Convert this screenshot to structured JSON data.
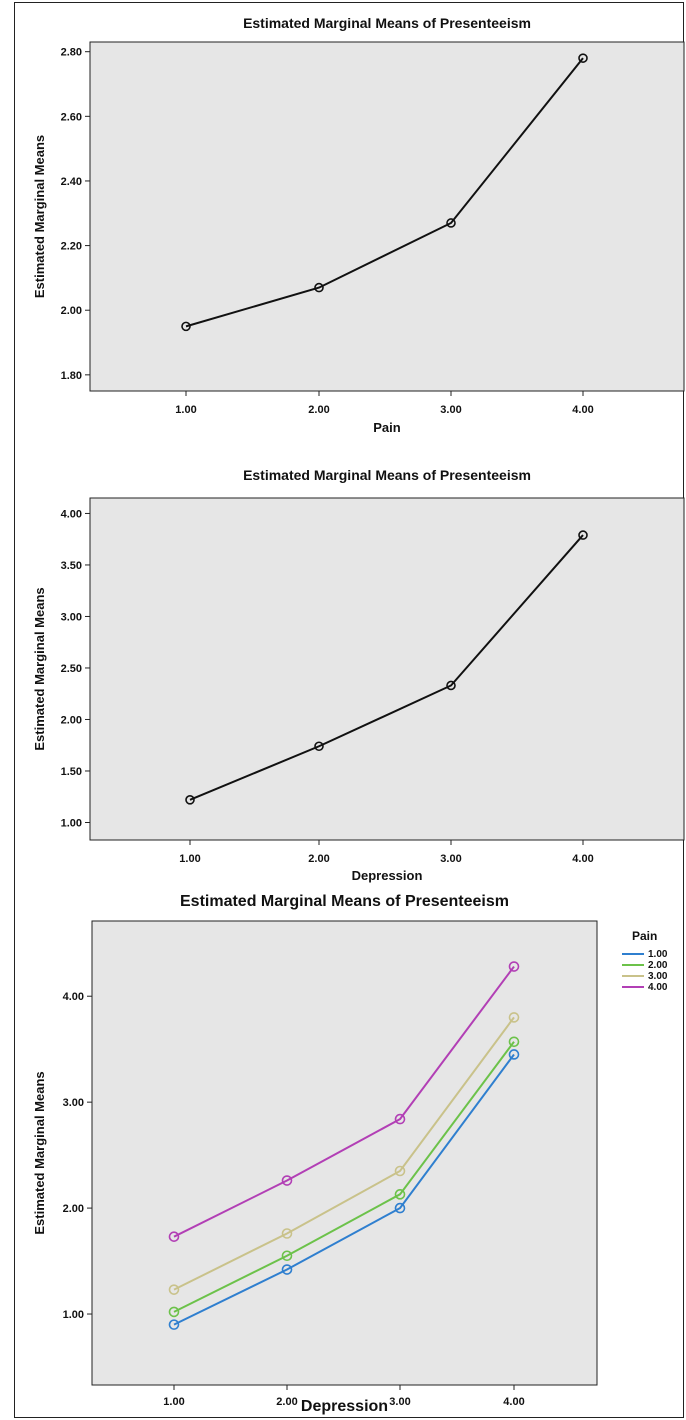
{
  "chart_data": [
    {
      "type": "line",
      "title": "Estimated Marginal Means of Presenteeism",
      "xlabel": "Pain",
      "ylabel": "Estimated Marginal Means",
      "x": [
        "1.00",
        "2.00",
        "3.00",
        "4.00"
      ],
      "y_ticks": [
        "1.80",
        "2.00",
        "2.20",
        "2.40",
        "2.60",
        "2.80"
      ],
      "ylim": [
        1.75,
        2.83
      ],
      "grid": false,
      "series": [
        {
          "values": [
            1.95,
            2.07,
            2.27,
            2.78
          ],
          "color": "#111111"
        }
      ]
    },
    {
      "type": "line",
      "title": "Estimated Marginal Means of Presenteeism",
      "xlabel": "Depression",
      "ylabel": "Estimated Marginal Means",
      "x": [
        "1.00",
        "2.00",
        "3.00",
        "4.00"
      ],
      "y_ticks": [
        "1.00",
        "1.50",
        "2.00",
        "2.50",
        "3.00",
        "3.50",
        "4.00"
      ],
      "ylim": [
        0.83,
        4.15
      ],
      "grid": false,
      "series": [
        {
          "values": [
            1.22,
            1.74,
            2.33,
            3.79
          ],
          "color": "#111111"
        }
      ]
    },
    {
      "type": "line",
      "title": "Estimated Marginal Means of Presenteeism",
      "xlabel": "Depression",
      "ylabel": "Estimated Marginal Means",
      "x": [
        "1.00",
        "2.00",
        "3.00",
        "4.00"
      ],
      "y_ticks": [
        "1.00",
        "2.00",
        "3.00",
        "4.00"
      ],
      "ylim": [
        0.33,
        4.71
      ],
      "grid": false,
      "legend": {
        "title": "Pain",
        "placement": "right"
      },
      "series": [
        {
          "name": "1.00",
          "values": [
            0.9,
            1.42,
            2.0,
            3.45
          ],
          "color": "#2f7fcf"
        },
        {
          "name": "2.00",
          "values": [
            1.02,
            1.55,
            2.13,
            3.57
          ],
          "color": "#6cc24a"
        },
        {
          "name": "3.00",
          "values": [
            1.23,
            1.76,
            2.35,
            3.8
          ],
          "color": "#c9c28a"
        },
        {
          "name": "4.00",
          "values": [
            1.73,
            2.26,
            2.84,
            4.28
          ],
          "color": "#b23fb5"
        }
      ]
    }
  ]
}
